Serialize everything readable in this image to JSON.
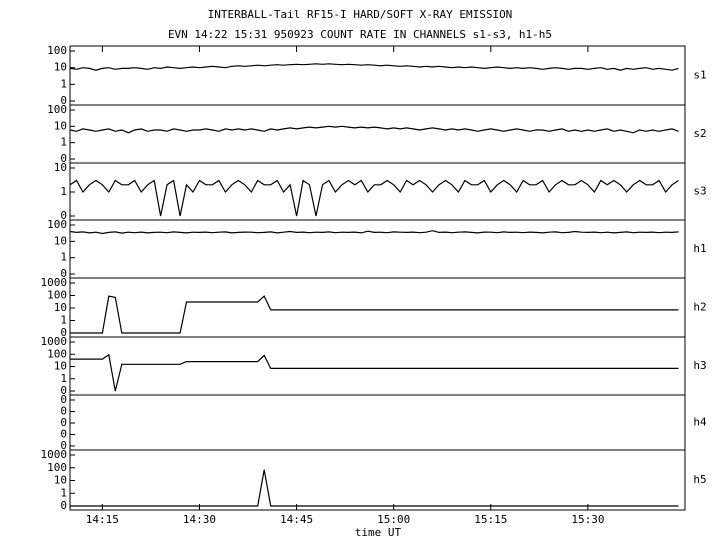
{
  "figure": {
    "title": "INTERBALL-Tail RF15-I HARD/SOFT X-RAY EMISSION",
    "subtitle": "EVN 14:22 15:31 950923  COUNT RATE IN CHANNELS s1-s3, h1-h5",
    "xlabel": "time UT",
    "xlim": [
      850,
      945
    ],
    "xticks": [
      {
        "value": 855,
        "label": "14:15"
      },
      {
        "value": 870,
        "label": "14:30"
      },
      {
        "value": 885,
        "label": "14:45"
      },
      {
        "value": 900,
        "label": "15:00"
      },
      {
        "value": 915,
        "label": "15:15"
      },
      {
        "value": 930,
        "label": "15:30"
      }
    ],
    "x": [
      850,
      851,
      852,
      853,
      854,
      855,
      856,
      857,
      858,
      859,
      860,
      861,
      862,
      863,
      864,
      865,
      866,
      867,
      868,
      869,
      870,
      871,
      872,
      873,
      874,
      875,
      876,
      877,
      878,
      879,
      880,
      881,
      882,
      883,
      884,
      885,
      886,
      887,
      888,
      889,
      890,
      891,
      892,
      893,
      894,
      895,
      896,
      897,
      898,
      899,
      900,
      901,
      902,
      903,
      904,
      905,
      906,
      907,
      908,
      909,
      910,
      911,
      912,
      913,
      914,
      915,
      916,
      917,
      918,
      919,
      920,
      921,
      922,
      923,
      924,
      925,
      926,
      927,
      928,
      929,
      930,
      931,
      932,
      933,
      934,
      935,
      936,
      937,
      938,
      939,
      940,
      941,
      942,
      943,
      944
    ]
  },
  "chart_data": [
    {
      "type": "line",
      "yscale": "log",
      "label": "s1",
      "ylim": [
        0,
        100
      ],
      "yticks": [
        0,
        1,
        10,
        100
      ],
      "values": [
        9,
        8,
        10,
        9,
        7,
        9,
        10,
        8,
        9,
        9,
        10,
        9,
        8,
        10,
        9,
        11,
        10,
        9,
        10,
        11,
        10,
        11,
        12,
        11,
        10,
        12,
        13,
        12,
        13,
        14,
        13,
        14,
        15,
        14,
        15,
        16,
        15,
        16,
        17,
        16,
        17,
        16,
        15,
        16,
        15,
        14,
        15,
        14,
        13,
        14,
        13,
        12,
        13,
        12,
        11,
        12,
        11,
        12,
        11,
        10,
        11,
        10,
        11,
        10,
        9,
        10,
        11,
        10,
        9,
        10,
        9,
        10,
        9,
        8,
        9,
        10,
        9,
        8,
        9,
        9,
        8,
        9,
        10,
        8,
        9,
        7,
        9,
        8,
        9,
        10,
        8,
        9,
        8,
        7,
        9
      ]
    },
    {
      "type": "line",
      "yscale": "log",
      "label": "s2",
      "ylim": [
        0,
        100
      ],
      "yticks": [
        0,
        1,
        10,
        100
      ],
      "values": [
        6,
        5,
        7,
        6,
        5,
        6,
        7,
        5,
        6,
        4,
        6,
        7,
        5,
        6,
        6,
        5,
        7,
        6,
        5,
        6,
        6,
        7,
        6,
        5,
        7,
        6,
        7,
        6,
        7,
        6,
        5,
        7,
        6,
        7,
        8,
        7,
        8,
        9,
        8,
        9,
        10,
        9,
        10,
        9,
        8,
        9,
        8,
        9,
        8,
        7,
        8,
        7,
        8,
        7,
        6,
        7,
        8,
        7,
        6,
        7,
        6,
        7,
        6,
        5,
        6,
        7,
        6,
        5,
        6,
        7,
        6,
        5,
        6,
        6,
        5,
        6,
        7,
        5,
        6,
        5,
        6,
        5,
        6,
        7,
        5,
        6,
        5,
        4,
        6,
        5,
        6,
        5,
        6,
        7,
        5
      ]
    },
    {
      "type": "line",
      "yscale": "log",
      "label": "s3",
      "ylim": [
        0,
        10
      ],
      "yticks": [
        0,
        1,
        10
      ],
      "values": [
        2,
        3,
        1,
        2,
        3,
        2,
        1,
        3,
        2,
        2,
        3,
        1,
        2,
        3,
        0,
        2,
        3,
        0,
        2,
        1,
        3,
        2,
        2,
        3,
        1,
        2,
        3,
        2,
        1,
        3,
        2,
        2,
        3,
        1,
        2,
        0,
        3,
        2,
        0,
        2,
        3,
        1,
        2,
        3,
        2,
        3,
        1,
        2,
        2,
        3,
        2,
        1,
        3,
        2,
        3,
        2,
        1,
        2,
        3,
        2,
        1,
        3,
        2,
        2,
        3,
        1,
        2,
        3,
        2,
        1,
        3,
        2,
        2,
        3,
        1,
        2,
        3,
        2,
        2,
        3,
        2,
        1,
        3,
        2,
        3,
        2,
        1,
        2,
        3,
        2,
        2,
        3,
        1,
        2,
        3
      ]
    },
    {
      "type": "line",
      "yscale": "log",
      "label": "h1",
      "ylim": [
        0,
        100
      ],
      "yticks": [
        0,
        1,
        10,
        100
      ],
      "values": [
        40,
        35,
        38,
        33,
        36,
        30,
        35,
        38,
        32,
        36,
        34,
        37,
        33,
        35,
        36,
        34,
        38,
        35,
        33,
        36,
        35,
        37,
        34,
        36,
        38,
        33,
        35,
        37,
        36,
        34,
        35,
        38,
        33,
        36,
        40,
        35,
        37,
        34,
        36,
        35,
        38,
        34,
        36,
        35,
        37,
        33,
        42,
        35,
        36,
        34,
        38,
        36,
        35,
        37,
        34,
        36,
        45,
        35,
        37,
        34,
        36,
        38,
        35,
        33,
        37,
        36,
        34,
        38,
        35,
        36,
        34,
        37,
        35,
        33,
        36,
        38,
        34,
        35,
        40,
        36,
        35,
        37,
        34,
        36,
        33,
        35,
        38,
        34,
        36,
        35,
        37,
        34,
        36,
        35,
        38
      ]
    },
    {
      "type": "line",
      "yscale": "log",
      "label": "h2",
      "ylim": [
        0,
        1000
      ],
      "yticks": [
        0,
        1,
        10,
        100,
        1000
      ],
      "values": [
        0,
        0,
        0,
        0,
        0,
        0,
        90,
        70,
        0,
        0,
        0,
        0,
        0,
        0,
        0,
        0,
        0,
        0,
        30,
        30,
        30,
        30,
        30,
        30,
        30,
        30,
        30,
        30,
        30,
        30,
        90,
        7,
        7,
        7,
        7,
        7,
        7,
        7,
        7,
        7,
        7,
        7,
        7,
        7,
        7,
        7,
        7,
        7,
        7,
        7,
        7,
        7,
        7,
        7,
        7,
        7,
        7,
        7,
        7,
        7,
        7,
        7,
        7,
        7,
        7,
        7,
        7,
        7,
        7,
        7,
        7,
        7,
        7,
        7,
        7,
        7,
        7,
        7,
        7,
        7,
        7,
        7,
        7,
        7,
        7,
        7,
        7,
        7,
        7,
        7,
        7,
        7,
        7,
        7,
        7
      ]
    },
    {
      "type": "line",
      "yscale": "log",
      "label": "h3",
      "ylim": [
        0,
        1000
      ],
      "yticks": [
        0,
        1,
        10,
        100,
        1000
      ],
      "values": [
        40,
        40,
        40,
        40,
        40,
        40,
        90,
        0,
        15,
        15,
        15,
        15,
        15,
        15,
        15,
        15,
        15,
        15,
        25,
        25,
        25,
        25,
        25,
        25,
        25,
        25,
        25,
        25,
        25,
        25,
        80,
        7,
        7,
        7,
        7,
        7,
        7,
        7,
        7,
        7,
        7,
        7,
        7,
        7,
        7,
        7,
        7,
        7,
        7,
        7,
        7,
        7,
        7,
        7,
        7,
        7,
        7,
        7,
        7,
        7,
        7,
        7,
        7,
        7,
        7,
        7,
        7,
        7,
        7,
        7,
        7,
        7,
        7,
        7,
        7,
        7,
        7,
        7,
        7,
        7,
        7,
        7,
        7,
        7,
        7,
        7,
        7,
        7,
        7,
        7,
        7,
        7,
        7,
        7,
        7
      ]
    },
    {
      "type": "line",
      "yscale": "log",
      "label": "h4",
      "ylim": [
        1e-05,
        0.1
      ],
      "yticks": [
        {
          "value": 1e-05,
          "label": "0"
        },
        {
          "value": 0.0001,
          "label": "0"
        },
        {
          "value": 0.001,
          "label": "0"
        },
        {
          "value": 0.01,
          "label": "0"
        },
        {
          "value": 0.1,
          "label": "0"
        }
      ]
    },
    {
      "type": "line",
      "yscale": "log",
      "label": "h5",
      "ylim": [
        0,
        1000
      ],
      "yticks": [
        0,
        1,
        10,
        100,
        1000
      ],
      "values": [
        0,
        0,
        0,
        0,
        0,
        0,
        0,
        0,
        0,
        0,
        0,
        0,
        0,
        0,
        0,
        0,
        0,
        0,
        0,
        0,
        0,
        0,
        0,
        0,
        0,
        0,
        0,
        0,
        0,
        0,
        70,
        0,
        0,
        0,
        0,
        0,
        0,
        0,
        0,
        0,
        0,
        0,
        0,
        0,
        0,
        0,
        0,
        0,
        0,
        0,
        0,
        0,
        0,
        0,
        0,
        0,
        0,
        0,
        0,
        0,
        0,
        0,
        0,
        0,
        0,
        0,
        0,
        0,
        0,
        0,
        0,
        0,
        0,
        0,
        0,
        0,
        0,
        0,
        0,
        0,
        0,
        0,
        0,
        0,
        0,
        0,
        0,
        0,
        0,
        0,
        0,
        0,
        0,
        0,
        0
      ]
    }
  ]
}
